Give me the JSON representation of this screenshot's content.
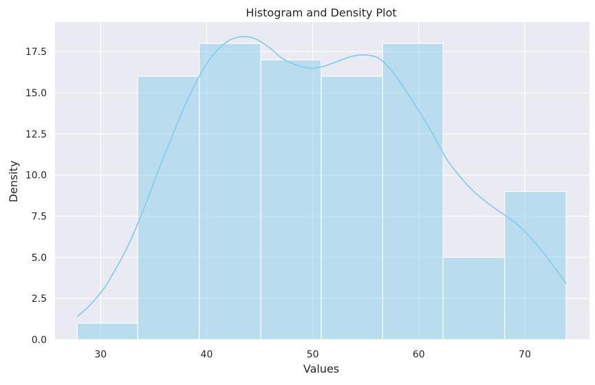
{
  "chart_data": {
    "type": "bar",
    "title": "Histogram and Density Plot",
    "xlabel": "Values",
    "ylabel": "Density",
    "xlim": [
      25.7,
      76.1
    ],
    "ylim": [
      0,
      19.3
    ],
    "grid": true,
    "x_ticks": [
      30,
      40,
      50,
      60,
      70
    ],
    "y_ticks": [
      0.0,
      2.5,
      5.0,
      7.5,
      10.0,
      12.5,
      15.0,
      17.5
    ],
    "y_tick_labels": [
      "0.0",
      "2.5",
      "5.0",
      "7.5",
      "10.0",
      "12.5",
      "15.0",
      "17.5"
    ],
    "bins": [
      {
        "x0": 27.8,
        "x1": 33.5,
        "value": 1
      },
      {
        "x0": 33.5,
        "x1": 39.3,
        "value": 16
      },
      {
        "x0": 39.3,
        "x1": 45.1,
        "value": 18
      },
      {
        "x0": 45.1,
        "x1": 50.8,
        "value": 17
      },
      {
        "x0": 50.8,
        "x1": 56.6,
        "value": 16
      },
      {
        "x0": 56.6,
        "x1": 62.3,
        "value": 18
      },
      {
        "x0": 62.3,
        "x1": 68.1,
        "value": 5
      },
      {
        "x0": 68.1,
        "x1": 73.9,
        "value": 9
      }
    ],
    "density_curve": {
      "x": [
        27.8,
        29.0,
        30.3,
        31.6,
        32.8,
        34.1,
        35.4,
        36.7,
        38.0,
        39.3,
        40.6,
        41.9,
        43.2,
        44.5,
        45.8,
        47.1,
        48.4,
        49.7,
        51.0,
        52.3,
        53.6,
        54.9,
        56.2,
        57.5,
        58.8,
        60.1,
        61.4,
        62.6,
        63.9,
        65.2,
        66.5,
        67.8,
        69.1,
        70.4,
        71.6,
        72.9,
        73.9
      ],
      "y": [
        1.4,
        2.1,
        3.1,
        4.5,
        6.0,
        8.0,
        10.2,
        12.3,
        14.3,
        16.0,
        17.3,
        18.1,
        18.4,
        18.3,
        17.8,
        17.1,
        16.7,
        16.5,
        16.6,
        16.9,
        17.2,
        17.3,
        17.1,
        16.3,
        15.1,
        13.8,
        12.4,
        11.0,
        9.9,
        9.0,
        8.3,
        7.7,
        7.1,
        6.3,
        5.4,
        4.3,
        3.4
      ]
    },
    "colors": {
      "background": "#eaeaf2",
      "grid": "#ffffff",
      "bar_fill": "#87ceeb",
      "bar_stroke": "#ffffff",
      "line": "#87ceeb"
    }
  }
}
